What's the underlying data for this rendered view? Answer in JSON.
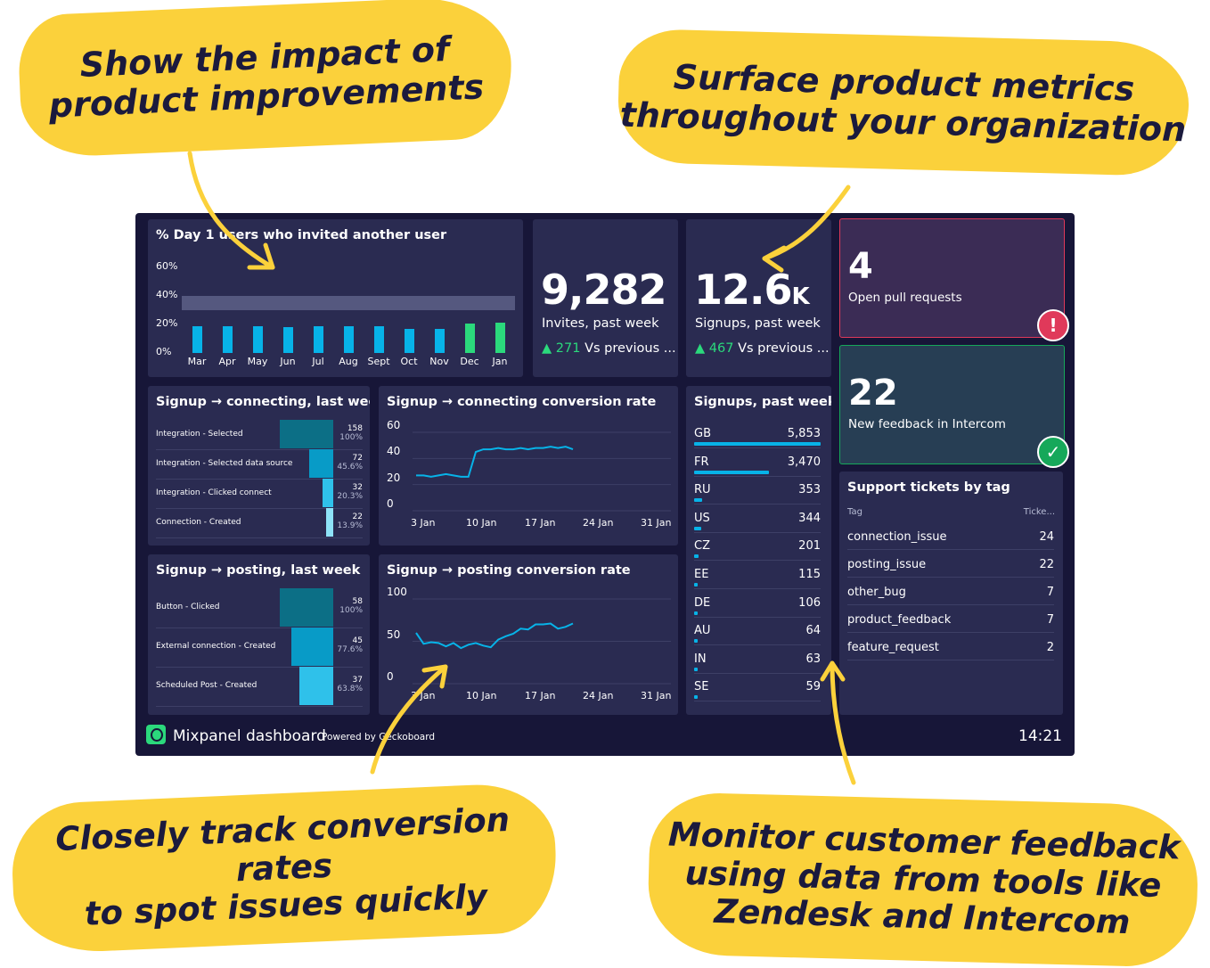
{
  "callouts": {
    "impact": [
      "Show the impact of",
      "product improvements"
    ],
    "surface": [
      "Surface product metrics",
      "throughout your organization"
    ],
    "conversion": [
      "Closely track conversion rates",
      "to spot issues quickly"
    ],
    "feedback": [
      "Monitor customer feedback",
      "using data from tools like",
      "Zendesk and Intercom"
    ]
  },
  "colors": {
    "accent_yellow": "#fbd13b",
    "dashboard_bg": "#171638",
    "panel_bg": "#2a2b51",
    "bar_blue": "#07b3e8",
    "bar_green": "#2bd97c",
    "alert_red": "#e0395a"
  },
  "day1": {
    "title": "% Day 1 users who invited another user",
    "yticks": [
      "60%",
      "40%",
      "20%",
      "0%"
    ],
    "chart_data": {
      "type": "bar",
      "categories": [
        "Mar",
        "Apr",
        "May",
        "Jun",
        "Jul",
        "Aug",
        "Sept",
        "Oct",
        "Nov",
        "Dec",
        "Jan"
      ],
      "values": [
        19,
        18.5,
        18.5,
        18,
        19,
        19,
        18.5,
        17,
        17,
        20.5,
        21
      ],
      "highlight": [
        "Dec",
        "Jan"
      ],
      "band": [
        30,
        40
      ],
      "ylim": [
        0,
        60
      ]
    }
  },
  "invites": {
    "value": "9,282",
    "label": "Invites, past week",
    "delta": "271",
    "delta_text": "Vs previous ..."
  },
  "signups_num": {
    "value": "12.6",
    "suffix": "K",
    "label": "Signups, past week",
    "delta": "467",
    "delta_text": "Vs previous ..."
  },
  "prs": {
    "value": "4",
    "label": "Open pull requests",
    "badge": "!"
  },
  "intercom": {
    "value": "22",
    "label": "New feedback in Intercom",
    "badge": "✓"
  },
  "funnel_connecting": {
    "title": "Signup → connecting, last week",
    "steps": [
      {
        "label": "Integration - Selected",
        "value": "158",
        "pct": "100%",
        "ratio": 1.0
      },
      {
        "label": "Integration - Selected data source",
        "value": "72",
        "pct": "45.6%",
        "ratio": 0.456
      },
      {
        "label": "Integration - Clicked connect",
        "value": "32",
        "pct": "20.3%",
        "ratio": 0.203
      },
      {
        "label": "Connection - Created",
        "value": "22",
        "pct": "13.9%",
        "ratio": 0.139
      }
    ]
  },
  "funnel_posting": {
    "title": "Signup → posting, last week",
    "steps": [
      {
        "label": "Button - Clicked",
        "value": "58",
        "pct": "100%",
        "ratio": 1.0
      },
      {
        "label": "External connection - Created",
        "value": "45",
        "pct": "77.6%",
        "ratio": 0.776
      },
      {
        "label": "Scheduled Post - Created",
        "value": "37",
        "pct": "63.8%",
        "ratio": 0.638
      }
    ]
  },
  "conv_connecting": {
    "title": "Signup → connecting conversion rate",
    "yticks": [
      "60",
      "40",
      "20",
      "0"
    ],
    "xticks": [
      "3 Jan",
      "10 Jan",
      "17 Jan",
      "24 Jan",
      "31 Jan"
    ],
    "chart_data": {
      "type": "line",
      "x": [
        1,
        2,
        3,
        4,
        5,
        6,
        7,
        8,
        9,
        10,
        11,
        12,
        13,
        14,
        15,
        16,
        17,
        18,
        19,
        20,
        21,
        22
      ],
      "y": [
        27,
        27,
        26,
        27,
        28,
        27,
        26,
        26,
        45,
        47,
        47,
        48,
        47,
        47,
        48,
        47,
        48,
        48,
        49,
        48,
        49,
        47
      ],
      "ylim": [
        0,
        60
      ]
    }
  },
  "conv_posting": {
    "title": "Signup → posting conversion rate",
    "yticks": [
      "100",
      "50",
      "0"
    ],
    "xticks": [
      "3 Jan",
      "10 Jan",
      "17 Jan",
      "24 Jan",
      "31 Jan"
    ],
    "chart_data": {
      "type": "line",
      "x": [
        1,
        2,
        3,
        4,
        5,
        6,
        7,
        8,
        9,
        10,
        11,
        12,
        13,
        14,
        15,
        16,
        17,
        18,
        19,
        20,
        21,
        22
      ],
      "y": [
        60,
        47,
        49,
        48,
        44,
        48,
        42,
        46,
        48,
        45,
        43,
        52,
        56,
        59,
        65,
        64,
        70,
        70,
        71,
        65,
        67,
        71
      ],
      "ylim": [
        0,
        100
      ]
    }
  },
  "signups_country": {
    "title": "Signups, past week",
    "rows": [
      {
        "country": "GB",
        "value": "5,853",
        "n": 5853
      },
      {
        "country": "FR",
        "value": "3,470",
        "n": 3470
      },
      {
        "country": "RU",
        "value": "353",
        "n": 353
      },
      {
        "country": "US",
        "value": "344",
        "n": 344
      },
      {
        "country": "CZ",
        "value": "201",
        "n": 201
      },
      {
        "country": "EE",
        "value": "115",
        "n": 115
      },
      {
        "country": "DE",
        "value": "106",
        "n": 106
      },
      {
        "country": "AU",
        "value": "64",
        "n": 64
      },
      {
        "country": "IN",
        "value": "63",
        "n": 63
      },
      {
        "country": "SE",
        "value": "59",
        "n": 59
      }
    ]
  },
  "tickets": {
    "title": "Support tickets by tag",
    "col_tag": "Tag",
    "col_count": "Ticke...",
    "rows": [
      {
        "tag": "connection_issue",
        "count": "24"
      },
      {
        "tag": "posting_issue",
        "count": "22"
      },
      {
        "tag": "other_bug",
        "count": "7"
      },
      {
        "tag": "product_feedback",
        "count": "7"
      },
      {
        "tag": "feature_request",
        "count": "2"
      }
    ]
  },
  "footer": {
    "title": "Mixpanel dashboard",
    "powered": "Powered by Geckoboard",
    "clock": "14:21"
  }
}
